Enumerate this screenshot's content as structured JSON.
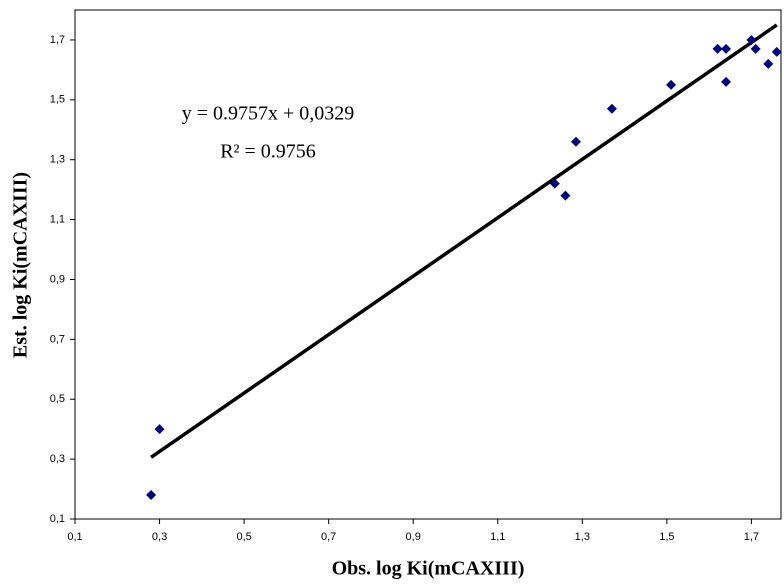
{
  "chart_data": {
    "type": "scatter",
    "x_label": "Obs. log Ki(mCAXIII)",
    "y_label": "Est. log Ki(mCAXIII)",
    "annotations": [
      "y = 0.9757x + 0,0329",
      "R² = 0.9756"
    ],
    "series": [
      {
        "color": "#000080",
        "x": [
          0.28,
          0.3,
          1.235,
          1.26,
          1.285,
          1.37,
          1.51,
          1.62,
          1.64,
          1.64,
          1.7,
          1.71,
          1.74,
          1.76
        ],
        "values": [
          0.18,
          0.4,
          1.22,
          1.18,
          1.36,
          1.47,
          1.55,
          1.67,
          1.67,
          1.56,
          1.7,
          1.67,
          1.62,
          1.66
        ]
      }
    ],
    "trendline": {
      "slope": 0.9757,
      "intercept": 0.0329,
      "xrange": [
        0.28,
        1.76
      ],
      "color": "#000000"
    },
    "xlim": [
      0.1,
      1.77
    ],
    "ylim": [
      0.1,
      1.8
    ],
    "xticks": [
      {
        "value": 0.1,
        "label": "0,1"
      },
      {
        "value": 0.3,
        "label": "0,3"
      },
      {
        "value": 0.5,
        "label": "0,5"
      },
      {
        "value": 0.7,
        "label": "0,7"
      },
      {
        "value": 0.9,
        "label": "0,9"
      },
      {
        "value": 1.1,
        "label": "1,1"
      },
      {
        "value": 1.3,
        "label": "1,3"
      },
      {
        "value": 1.5,
        "label": "1,5"
      },
      {
        "value": 1.7,
        "label": "1,7"
      }
    ],
    "yticks": [
      {
        "value": 0.1,
        "label": "0,1"
      },
      {
        "value": 0.3,
        "label": "0,3"
      },
      {
        "value": 0.5,
        "label": "0,5"
      },
      {
        "value": 0.7,
        "label": "0,7"
      },
      {
        "value": 0.9,
        "label": "0,9"
      },
      {
        "value": 1.1,
        "label": "1,1"
      },
      {
        "value": 1.3,
        "label": "1,3"
      },
      {
        "value": 1.5,
        "label": "1,5"
      },
      {
        "value": 1.7,
        "label": "1,7"
      }
    ],
    "grid": false
  }
}
